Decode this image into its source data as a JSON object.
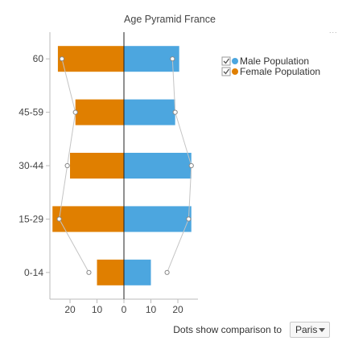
{
  "chart_data": {
    "type": "bar",
    "title": "Age Pyramid France",
    "categories": [
      "0-14",
      "15-29",
      "30-44",
      "45-59",
      "60"
    ],
    "series": [
      {
        "name": "Male Population",
        "color": "#4ca6df",
        "values": [
          10,
          25,
          25,
          19,
          20.5
        ]
      },
      {
        "name": "Female Population",
        "color": "#e07f00",
        "values": [
          10,
          26.5,
          20,
          18,
          24.5
        ]
      }
    ],
    "comparison_dots": {
      "male": [
        16,
        24,
        25,
        19,
        18
      ],
      "female": [
        13,
        24,
        21,
        18,
        23
      ]
    },
    "x_ticks": [
      "20",
      "10",
      "0",
      "10",
      "20"
    ],
    "x_tick_values": [
      -20,
      -10,
      0,
      10,
      20
    ],
    "xlim": [
      -28,
      28
    ],
    "legend_position": "right",
    "legend_checked": true
  },
  "menu_dots": "...",
  "controls": {
    "compare_label": "Dots show comparison to",
    "compare_value": "Paris"
  }
}
